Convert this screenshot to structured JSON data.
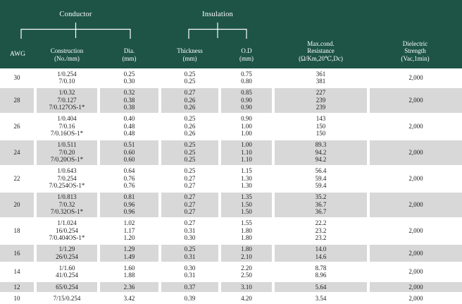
{
  "colors": {
    "header_green": "#1d5446",
    "shaded_row": "#d8d8d8",
    "body_text": "#1c1c1c",
    "header_text": "#ffffff"
  },
  "header": {
    "group_labels": {
      "conductor": "Conductor",
      "insulation": "Insulation"
    },
    "columns": [
      {
        "id": "awg",
        "lines": [
          "AWG"
        ]
      },
      {
        "id": "construction",
        "lines": [
          "Construction",
          "(No./mm)"
        ]
      },
      {
        "id": "dia",
        "lines": [
          "Dia.",
          "(mm)"
        ]
      },
      {
        "id": "thickness",
        "lines": [
          "Thickness",
          "(mm)"
        ]
      },
      {
        "id": "od",
        "lines": [
          "O.D",
          "(mm)"
        ]
      },
      {
        "id": "resistance",
        "lines": [
          "Max.cond.",
          "Resistance",
          "(Ω/Km,20℃,Dc)"
        ]
      },
      {
        "id": "dielectric",
        "lines": [
          "Dielectric",
          "Strength",
          "(Vac,1min)"
        ]
      }
    ]
  },
  "table": {
    "rows": [
      {
        "awg": "30",
        "shaded": false,
        "construction": [
          "1/0.254",
          "7/0.10"
        ],
        "dia": [
          "0.25",
          "0.30"
        ],
        "thickness": [
          "0.25",
          "0.25"
        ],
        "od": [
          "0.75",
          "0.80"
        ],
        "resistance": [
          "361",
          "381"
        ],
        "dielectric": "2,000"
      },
      {
        "awg": "28",
        "shaded": true,
        "construction": [
          "1/0.32",
          "7/0.127",
          "7/0.127OS-1*"
        ],
        "dia": [
          "0.32",
          "0.38",
          "0.38"
        ],
        "thickness": [
          "0.27",
          "0.26",
          "0.26"
        ],
        "od": [
          "0.85",
          "0.90",
          "0.90"
        ],
        "resistance": [
          "227",
          "239",
          "239"
        ],
        "dielectric": "2,000"
      },
      {
        "awg": "26",
        "shaded": false,
        "construction": [
          "1/0.404",
          "7/0.16",
          "7/0.16OS-1*"
        ],
        "dia": [
          "0.40",
          "0.48",
          "0.48"
        ],
        "thickness": [
          "0.25",
          "0.26",
          "0.26"
        ],
        "od": [
          "0.90",
          "1.00",
          "1.00"
        ],
        "resistance": [
          "143",
          "150",
          "150"
        ],
        "dielectric": "2,000"
      },
      {
        "awg": "24",
        "shaded": true,
        "construction": [
          "1/0.511",
          "7/0.20",
          "7/0.20OS-1*"
        ],
        "dia": [
          "0.51",
          "0.60",
          "0.60"
        ],
        "thickness": [
          "0.25",
          "0.25",
          "0.25"
        ],
        "od": [
          "1.00",
          "1.10",
          "1.10"
        ],
        "resistance": [
          "89.3",
          "94.2",
          "94.2"
        ],
        "dielectric": "2,000"
      },
      {
        "awg": "22",
        "shaded": false,
        "construction": [
          "1/0.643",
          "7/0.254",
          "7/0.254OS-1*"
        ],
        "dia": [
          "0.64",
          "0.76",
          "0.76"
        ],
        "thickness": [
          "0.25",
          "0.27",
          "0.27"
        ],
        "od": [
          "1.15",
          "1.30",
          "1.30"
        ],
        "resistance": [
          "56.4",
          "59.4",
          "59.4"
        ],
        "dielectric": "2,000"
      },
      {
        "awg": "20",
        "shaded": true,
        "construction": [
          "1/0.813",
          "7/0.32",
          "7/0.32OS-1*"
        ],
        "dia": [
          "0.81",
          "0.96",
          "0.96"
        ],
        "thickness": [
          "0.27",
          "0.27",
          "0.27"
        ],
        "od": [
          "1.35",
          "1.50",
          "1.50"
        ],
        "resistance": [
          "35.2",
          "36.7",
          "36.7"
        ],
        "dielectric": "2,000"
      },
      {
        "awg": "18",
        "shaded": false,
        "construction": [
          "1/1.024",
          "16/0.254",
          "7/0.404OS-1*"
        ],
        "dia": [
          "1.02",
          "1.17",
          "1.20"
        ],
        "thickness": [
          "0.27",
          "0.31",
          "0.30"
        ],
        "od": [
          "1.55",
          "1.80",
          "1.80"
        ],
        "resistance": [
          "22.2",
          "23.2",
          "23.2"
        ],
        "dielectric": "2,000"
      },
      {
        "awg": "16",
        "shaded": true,
        "construction": [
          "1/1.29",
          "26/0.254"
        ],
        "dia": [
          "1.29",
          "1.49"
        ],
        "thickness": [
          "0.25",
          "0.31"
        ],
        "od": [
          "1.80",
          "2.10"
        ],
        "resistance": [
          "14.0",
          "14.6"
        ],
        "dielectric": "2,000"
      },
      {
        "awg": "14",
        "shaded": false,
        "construction": [
          "1/1.60",
          "41/0.254"
        ],
        "dia": [
          "1.60",
          "1.88"
        ],
        "thickness": [
          "0.30",
          "0.31"
        ],
        "od": [
          "2.20",
          "2.50"
        ],
        "resistance": [
          "8.78",
          "8.96"
        ],
        "dielectric": "2,000"
      },
      {
        "awg": "12",
        "shaded": true,
        "construction": [
          "65/0.254"
        ],
        "dia": [
          "2.36"
        ],
        "thickness": [
          "0.37"
        ],
        "od": [
          "3.10"
        ],
        "resistance": [
          "5.64"
        ],
        "dielectric": "2,000"
      },
      {
        "awg": "10",
        "shaded": false,
        "construction": [
          "7/15/0.254"
        ],
        "dia": [
          "3.42"
        ],
        "thickness": [
          "0.39"
        ],
        "od": [
          "4.20"
        ],
        "resistance": [
          "3.54"
        ],
        "dielectric": "2,000"
      }
    ]
  }
}
